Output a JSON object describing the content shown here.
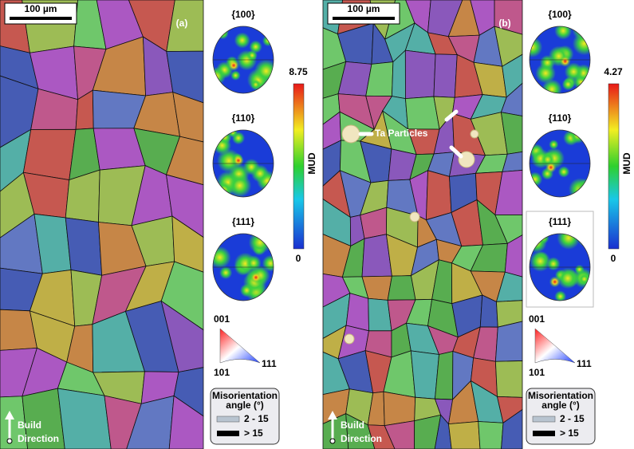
{
  "panels": [
    {
      "label": "(a)",
      "scale_bar": "100 µm",
      "pole_figures": [
        "{100}",
        "{110}",
        "{111}"
      ],
      "colorbar": {
        "max": 8.75,
        "min": 0,
        "label": "MUD"
      },
      "ipf": {
        "top": "001",
        "left": "101",
        "right": "111"
      },
      "legend": {
        "title": [
          "Misorientation",
          "angle (°)"
        ],
        "items": [
          "2 - 15",
          "> 15"
        ]
      },
      "build_direction": [
        "Build",
        "Direction"
      ]
    },
    {
      "label": "(b)",
      "scale_bar": "100 µm",
      "pole_figures": [
        "{100}",
        "{110}",
        "{111}"
      ],
      "colorbar": {
        "max": 4.27,
        "min": 0,
        "label": "MUD"
      },
      "ipf": {
        "top": "001",
        "left": "101",
        "right": "111"
      },
      "legend": {
        "title": [
          "Misorientation",
          "angle (°)"
        ],
        "items": [
          "2 - 15",
          "> 15"
        ]
      },
      "build_direction": [
        "Build",
        "Direction"
      ],
      "annotation": "Ta Particles"
    }
  ]
}
